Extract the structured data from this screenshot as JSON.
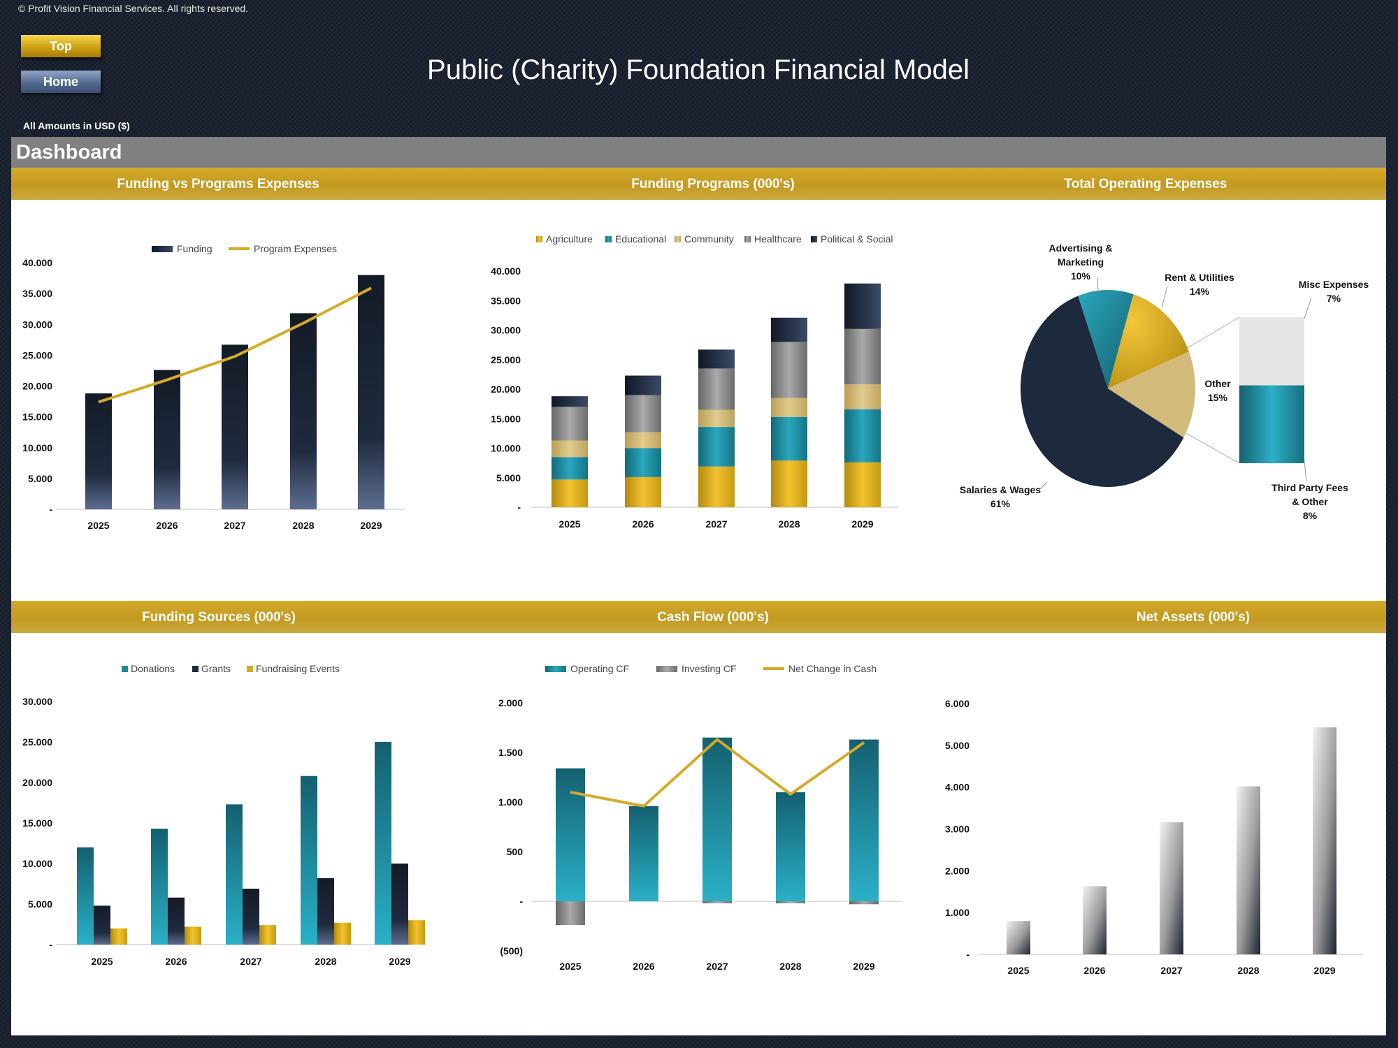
{
  "header": {
    "copyright": "© Profit Vision Financial Services. All rights reserved.",
    "top_button": "Top",
    "home_button": "Home",
    "title": "Public (Charity) Foundation Financial Model",
    "amounts_note": "All Amounts in  USD ($)",
    "dashboard_label": "Dashboard"
  },
  "colors": {
    "gold": "#d4aa2b",
    "navy": "#1d2a3d",
    "teal": "#1f8fa3",
    "grey": "#808080",
    "tan": "#d2bb7a",
    "light_grey": "#e6e6e6"
  },
  "chart_data": [
    {
      "id": "funding-vs-programs",
      "type": "bar",
      "title": "Funding vs Programs Expenses",
      "categories": [
        "2025",
        "2026",
        "2027",
        "2028",
        "2029"
      ],
      "series": [
        {
          "name": "Funding",
          "type": "bar",
          "values": [
            18800,
            22600,
            26700,
            31800,
            38000
          ]
        },
        {
          "name": "Program Expenses",
          "type": "line",
          "values": [
            17400,
            21000,
            24800,
            30200,
            35900
          ]
        }
      ],
      "ylim": [
        0,
        40000
      ],
      "yticks": [
        0,
        5000,
        10000,
        15000,
        20000,
        25000,
        30000,
        35000,
        40000
      ],
      "ytick_labels": [
        "-",
        "5.000",
        "10.000",
        "15.000",
        "20.000",
        "25.000",
        "30.000",
        "35.000",
        "40.000"
      ],
      "legend": "top"
    },
    {
      "id": "funding-programs",
      "type": "bar",
      "stacked": true,
      "title": "Funding Programs (000's)",
      "categories": [
        "2025",
        "2026",
        "2027",
        "2028",
        "2029"
      ],
      "series": [
        {
          "name": "Agriculture",
          "values": [
            4700,
            5100,
            6900,
            7900,
            7600
          ]
        },
        {
          "name": "Educational",
          "values": [
            3800,
            4900,
            6700,
            7400,
            9000
          ]
        },
        {
          "name": "Community",
          "values": [
            2800,
            2700,
            2900,
            3200,
            4200
          ]
        },
        {
          "name": "Healthcare",
          "values": [
            5700,
            6300,
            7000,
            9500,
            9400
          ]
        },
        {
          "name": "Political & Social",
          "values": [
            1800,
            3300,
            3200,
            4100,
            7700
          ]
        }
      ],
      "ylim": [
        0,
        40000
      ],
      "yticks": [
        0,
        5000,
        10000,
        15000,
        20000,
        25000,
        30000,
        35000,
        40000
      ],
      "ytick_labels": [
        "-",
        "5.000",
        "10.000",
        "15.000",
        "20.000",
        "25.000",
        "30.000",
        "35.000",
        "40.000"
      ],
      "legend": "top"
    },
    {
      "id": "total-operating-expenses",
      "type": "pie",
      "subtype": "pie-of-pie",
      "title": "Total Operating Expenses",
      "slices": [
        {
          "label": "Salaries & Wages",
          "value": 61,
          "pct_label": "61%"
        },
        {
          "label": "Advertising & Marketing",
          "value": 10,
          "pct_label": "10%"
        },
        {
          "label": "Rent & Utilities",
          "value": 14,
          "pct_label": "14%"
        },
        {
          "label": "Other",
          "value": 15,
          "pct_label": "15%"
        }
      ],
      "other_breakdown": [
        {
          "label": "Third Party Fees & Other",
          "value": 8,
          "pct_label": "8%"
        },
        {
          "label": "Misc Expenses",
          "value": 7,
          "pct_label": "7%"
        }
      ]
    },
    {
      "id": "funding-sources",
      "type": "bar",
      "title": "Funding Sources (000's)",
      "categories": [
        "2025",
        "2026",
        "2027",
        "2028",
        "2029"
      ],
      "series": [
        {
          "name": "Donations",
          "values": [
            12000,
            14300,
            17300,
            20800,
            25000
          ]
        },
        {
          "name": "Grants",
          "values": [
            4800,
            5800,
            6900,
            8200,
            10000
          ]
        },
        {
          "name": "Fundraising Events",
          "values": [
            2000,
            2200,
            2400,
            2700,
            3000
          ]
        }
      ],
      "ylim": [
        0,
        30000
      ],
      "yticks": [
        0,
        5000,
        10000,
        15000,
        20000,
        25000,
        30000
      ],
      "ytick_labels": [
        "-",
        "5.000",
        "10.000",
        "15.000",
        "20.000",
        "25.000",
        "30.000"
      ],
      "legend": "top"
    },
    {
      "id": "cash-flow",
      "type": "bar",
      "title": "Cash Flow (000's)",
      "categories": [
        "2025",
        "2026",
        "2027",
        "2028",
        "2029"
      ],
      "series": [
        {
          "name": "Operating CF",
          "type": "bar",
          "values": [
            1340,
            960,
            1650,
            1100,
            1630
          ]
        },
        {
          "name": "Investing CF",
          "type": "bar",
          "values": [
            -240,
            0,
            -20,
            -20,
            -30
          ]
        },
        {
          "name": "Net Change in Cash",
          "type": "line",
          "values": [
            1100,
            960,
            1630,
            1080,
            1600
          ]
        }
      ],
      "ylim": [
        -500,
        2000
      ],
      "yticks": [
        -500,
        0,
        500,
        1000,
        1500,
        2000
      ],
      "ytick_labels": [
        "(500)",
        "-",
        "500",
        "1.000",
        "1.500",
        "2.000"
      ],
      "legend": "top"
    },
    {
      "id": "net-assets",
      "type": "bar",
      "title": "Net Assets (000's)",
      "categories": [
        "2025",
        "2026",
        "2027",
        "2028",
        "2029"
      ],
      "series": [
        {
          "name": "Net Assets",
          "values": [
            800,
            1630,
            3160,
            4020,
            5430
          ]
        }
      ],
      "ylim": [
        0,
        6000
      ],
      "yticks": [
        0,
        1000,
        2000,
        3000,
        4000,
        5000,
        6000
      ],
      "ytick_labels": [
        "-",
        "1.000",
        "2.000",
        "3.000",
        "4.000",
        "5.000",
        "6.000"
      ],
      "legend": "none"
    }
  ]
}
